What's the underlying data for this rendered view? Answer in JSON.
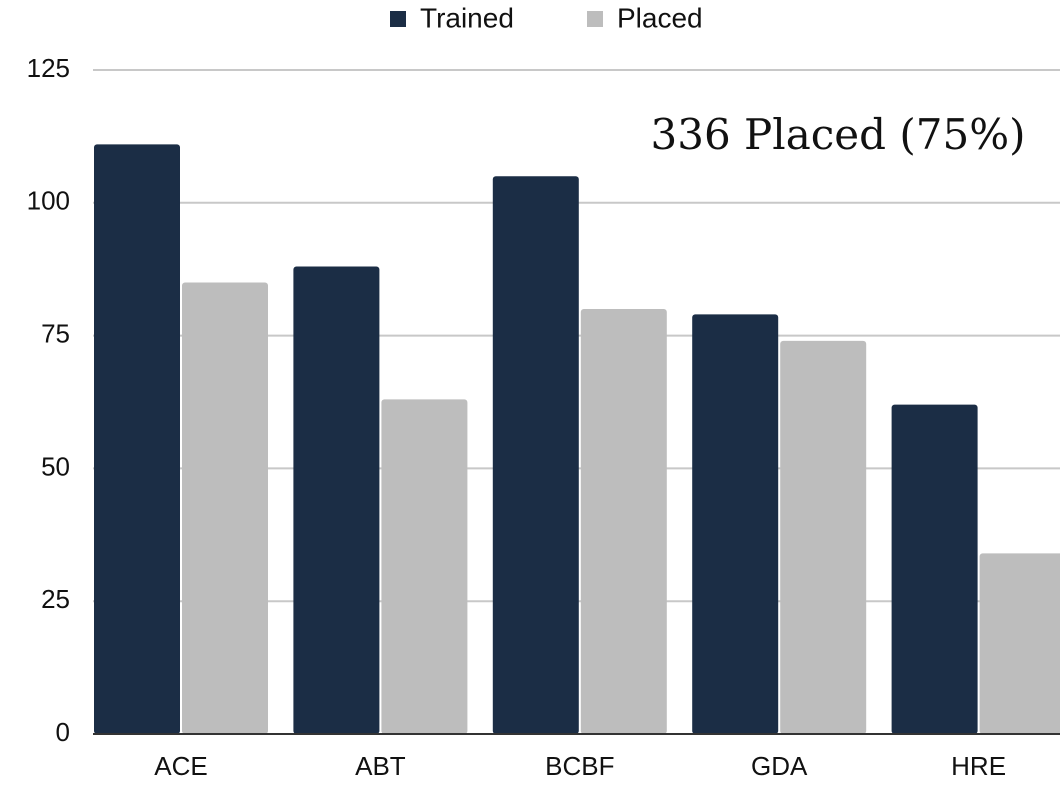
{
  "chart_data": {
    "type": "bar",
    "categories": [
      "ACE",
      "ABT",
      "BCBF",
      "GDA",
      "HRE"
    ],
    "series": [
      {
        "name": "Trained",
        "color": "#1b2d45",
        "values": [
          111,
          88,
          105,
          79,
          62
        ]
      },
      {
        "name": "Placed",
        "color": "#bdbdbd",
        "values": [
          85,
          63,
          80,
          74,
          34
        ]
      }
    ],
    "annotation": "336 Placed (75%)",
    "ylim": [
      0,
      125
    ],
    "yticks": [
      0,
      25,
      50,
      75,
      100,
      125
    ],
    "grid": true,
    "legend": "top"
  }
}
